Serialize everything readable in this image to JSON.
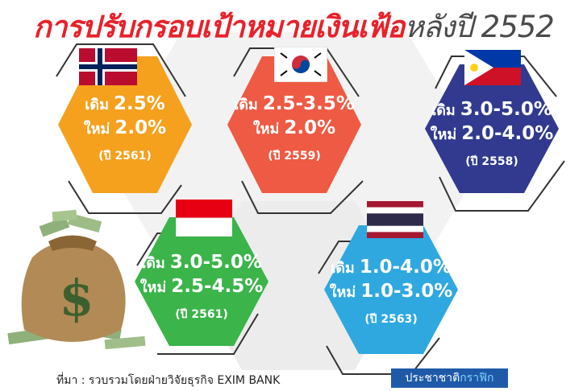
{
  "title": {
    "main": "การปรับกรอบเป้าหมายเงินเฟ้อ",
    "suffix": "หลังปี 2552"
  },
  "cards": [
    {
      "country_flag": "norway-flag",
      "color": "#f5a11e",
      "old_label": "เดิม",
      "old_value": "2.5%",
      "new_label": "ใหม่",
      "new_value": "2.0%",
      "year": "(ปี 2561)"
    },
    {
      "country_flag": "south-korea-flag",
      "color": "#ee5a43",
      "old_label": "เดิม",
      "old_value": "2.5-3.5%",
      "new_label": "ใหม่",
      "new_value": "2.0%",
      "year": "(ปี 2559)"
    },
    {
      "country_flag": "philippines-flag",
      "color": "#313a8f",
      "old_label": "เดิม",
      "old_value": "3.0-5.0%",
      "new_label": "ใหม่",
      "new_value": "2.0-4.0%",
      "year": "(ปี 2558)"
    },
    {
      "country_flag": "indonesia-flag",
      "color": "#3bb44a",
      "old_label": "เดิม",
      "old_value": "3.0-5.0%",
      "new_label": "ใหม่",
      "new_value": "2.5-4.5%",
      "year": "(ปี 2561)"
    },
    {
      "country_flag": "thailand-flag",
      "color": "#2fa8e0",
      "old_label": "เดิม",
      "old_value": "1.0-4.0%",
      "new_label": "ใหม่",
      "new_value": "1.0-3.0%",
      "year": "(ปี 2563)"
    }
  ],
  "footer": {
    "source": "ที่มา : รวบรวมโดยฝ่ายวิจัยธุรกิจ EXIM BANK",
    "credit_main": "ประชาชาติ",
    "credit_highlight": "กราฟิก"
  },
  "icons": {
    "money_bag": "money-bag-icon"
  }
}
